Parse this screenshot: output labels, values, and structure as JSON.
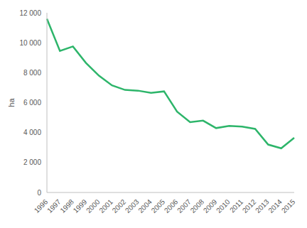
{
  "chart_data": {
    "type": "line",
    "y_label": "ha",
    "categories": [
      "1996",
      "1997",
      "1998",
      "1999",
      "2000",
      "2001",
      "2002",
      "2003",
      "2004",
      "2005",
      "2006",
      "2007",
      "2008",
      "2009",
      "2010",
      "2011",
      "2012",
      "2013",
      "2014",
      "2015"
    ],
    "values": [
      11600,
      9450,
      9750,
      8650,
      7800,
      7150,
      6850,
      6800,
      6650,
      6750,
      5400,
      4700,
      4800,
      4300,
      4450,
      4400,
      4250,
      3200,
      2950,
      3650
    ],
    "color": "#2db56a",
    "ylim": [
      0,
      12000
    ],
    "yticks": [
      0,
      {
        "value": 2000,
        "label": "2 000"
      },
      {
        "value": 4000,
        "label": "4 000"
      },
      {
        "value": 6000,
        "label": "6 000"
      },
      {
        "value": 8000,
        "label": "8 000"
      },
      {
        "value": 10000,
        "label": "10 000"
      },
      {
        "value": 12000,
        "label": "12 000"
      }
    ],
    "grid": false
  }
}
